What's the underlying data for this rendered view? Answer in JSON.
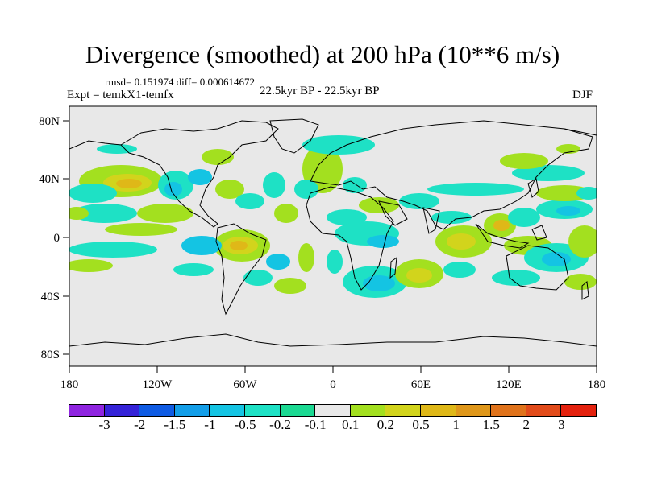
{
  "title": "Divergence (smoothed) at 200 hPa (10**6 m/s)",
  "stats": "rmsd= 0.151974 diff= 0.000614672",
  "experiment": "Expt = temkX1-temfx",
  "period": "22.5kyr BP - 22.5kyr BP",
  "season": "DJF",
  "lat_labels": [
    "80N",
    "40N",
    "0",
    "40S",
    "80S"
  ],
  "lon_labels": [
    "180",
    "120W",
    "60W",
    "0",
    "60E",
    "120E",
    "180"
  ],
  "colorbar": {
    "colors": [
      "#8f25e0",
      "#3523d8",
      "#0f5be3",
      "#139ee8",
      "#14c4e3",
      "#1ee1c5",
      "#1bd992",
      "#e8e8e8",
      "#a3e01f",
      "#d2d41c",
      "#dfb818",
      "#df971a",
      "#e0731b",
      "#e14b1a",
      "#e4220e"
    ],
    "labels": [
      "-3",
      "-2",
      "-1.5",
      "-1",
      "-0.5",
      "-0.2",
      "-0.1",
      "0.1",
      "0.2",
      "0.5",
      "1",
      "1.5",
      "2",
      "3"
    ]
  }
}
